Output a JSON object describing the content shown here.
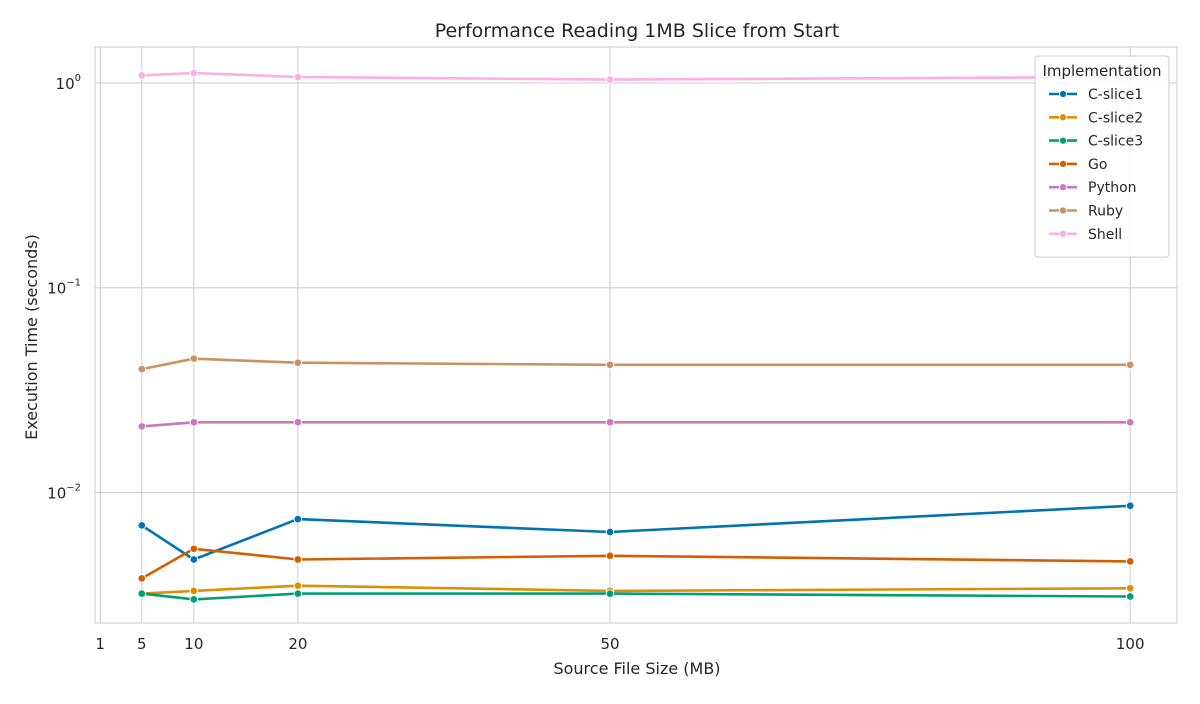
{
  "chart_data": {
    "type": "line",
    "title": "Performance Reading 1MB Slice from Start",
    "xlabel": "Source File Size (MB)",
    "ylabel": "Execution Time (seconds)",
    "x_ticks": [
      1,
      5,
      10,
      20,
      50,
      100
    ],
    "x_tick_labels": [
      "1",
      "5",
      "10",
      "20",
      "50",
      "100"
    ],
    "y_scale": "log",
    "y_ticks": [
      0.01,
      0.1,
      1
    ],
    "y_tick_labels": [
      {
        "base": "10",
        "exp": "−2"
      },
      {
        "base": "10",
        "exp": "−1"
      },
      {
        "base": "10",
        "exp": "0"
      }
    ],
    "xlim": [
      0.5,
      104.5
    ],
    "ylim": [
      0.0023,
      1.5
    ],
    "grid": true,
    "legend": {
      "title": "Implementation",
      "placement": "top-right"
    },
    "x": [
      5,
      10,
      20,
      50,
      100
    ],
    "series": [
      {
        "name": "C-slice1",
        "color": "#0173b2",
        "values": [
          0.0069,
          0.0047,
          0.0074,
          0.0064,
          0.0086
        ]
      },
      {
        "name": "C-slice2",
        "color": "#de8f05",
        "values": [
          0.0032,
          0.0033,
          0.0035,
          0.0033,
          0.0034
        ]
      },
      {
        "name": "C-slice3",
        "color": "#029e73",
        "values": [
          0.0032,
          0.003,
          0.0032,
          0.0032,
          0.0031
        ]
      },
      {
        "name": "Go",
        "color": "#d55e00",
        "values": [
          0.0038,
          0.0053,
          0.0047,
          0.0049,
          0.0046
        ]
      },
      {
        "name": "Python",
        "color": "#cc78bc",
        "values": [
          0.021,
          0.022,
          0.022,
          0.022,
          0.022
        ]
      },
      {
        "name": "Ruby",
        "color": "#ca9161",
        "values": [
          0.04,
          0.045,
          0.043,
          0.042,
          0.042
        ]
      },
      {
        "name": "Shell",
        "color": "#fbafe4",
        "values": [
          1.09,
          1.12,
          1.07,
          1.04,
          1.07
        ]
      }
    ]
  }
}
